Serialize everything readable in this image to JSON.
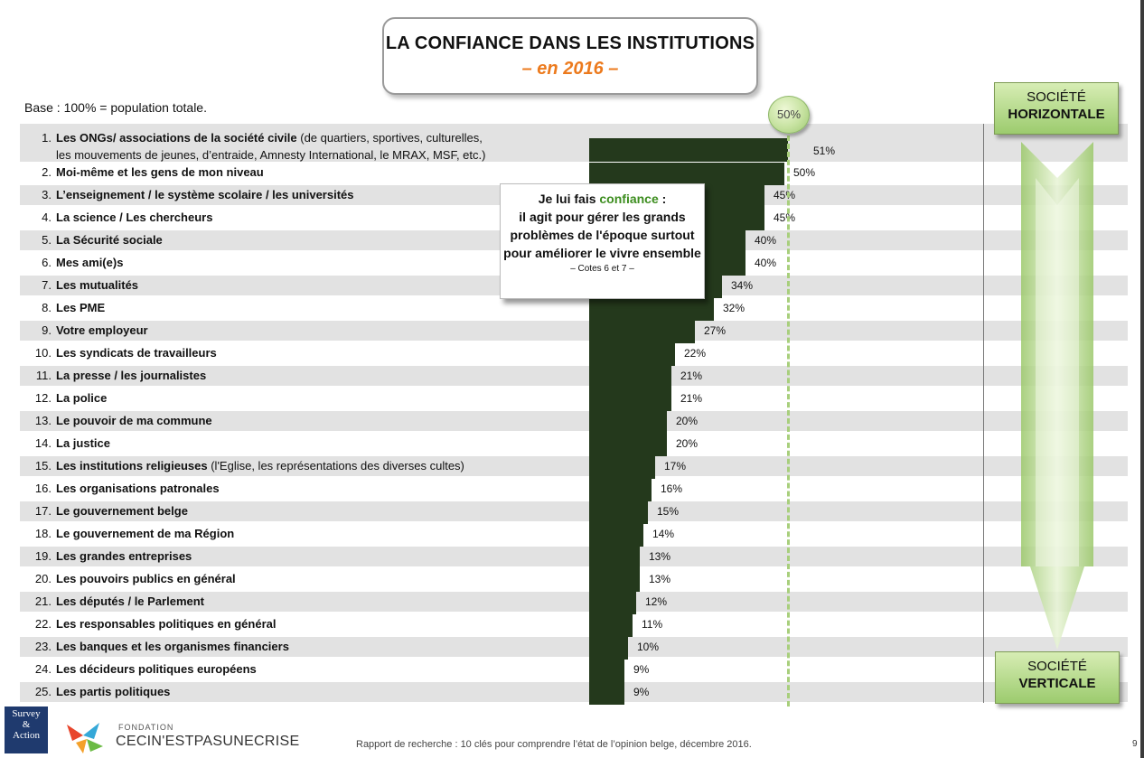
{
  "title": "LA CONFIANCE DANS LES INSTITUTIONS",
  "subtitle": "– en 2016 –",
  "base_note": "Base : 100% = population totale.",
  "reference_badge": "50%",
  "callout": {
    "line1_prefix": "Je lui fais ",
    "line1_highlight": "confiance",
    "line1_suffix": " :",
    "body": "il agit pour gérer les grands problèmes de l'époque surtout pour améliorer le vivre ensemble",
    "note": "– Cotes 6 et 7 –"
  },
  "society_top": {
    "line1": "SOCIÉTÉ",
    "line2": "HORIZONTALE"
  },
  "society_bottom": {
    "line1": "SOCIÉTÉ",
    "line2": "VERTICALE"
  },
  "logo_left": {
    "line1": "Survey",
    "line2": "&",
    "line3": "Action"
  },
  "logo_fondation": {
    "small": "FONDATION",
    "big": "CECIN'ESTPASUNECRISE"
  },
  "footer": "Rapport de recherche : 10 clés pour comprendre l’état de l’opinion belge, décembre 2016.",
  "page_number": "9",
  "colors": {
    "bar": "#24391c",
    "accent_orange": "#ec7a1d",
    "accent_green": "#3c8d1e",
    "row_shade": "#e2e2e2"
  },
  "chart_data": {
    "type": "bar",
    "orientation": "horizontal",
    "reference_line": 50,
    "categories": [
      {
        "num": "1.",
        "label": "Les ONGs/ associations de la société civile",
        "detail": " (de quartiers, sportives, culturelles,",
        "detail2": "les mouvements de jeunes, d’entraide, Amnesty International, le MRAX, MSF, etc.)"
      },
      {
        "num": "2.",
        "label": "Moi-même et les gens de mon niveau"
      },
      {
        "num": "3.",
        "label": "L’enseignement / le système scolaire / les universités"
      },
      {
        "num": "4.",
        "label": "La science / Les chercheurs"
      },
      {
        "num": "5.",
        "label": "La Sécurité sociale"
      },
      {
        "num": "6.",
        "label": "Mes ami(e)s"
      },
      {
        "num": "7.",
        "label": "Les mutualités"
      },
      {
        "num": "8.",
        "label": "Les PME"
      },
      {
        "num": "9.",
        "label": "Votre employeur"
      },
      {
        "num": "10.",
        "label": "Les syndicats de travailleurs"
      },
      {
        "num": "11.",
        "label": "La presse / les journalistes"
      },
      {
        "num": "12.",
        "label": "La police"
      },
      {
        "num": "13.",
        "label": "Le pouvoir de ma commune"
      },
      {
        "num": "14.",
        "label": "La justice"
      },
      {
        "num": "15.",
        "label": "Les institutions religieuses",
        "detail": " (l'Eglise, les représentations des diverses cultes)"
      },
      {
        "num": "16.",
        "label": "Les organisations patronales"
      },
      {
        "num": "17.",
        "label": "Le gouvernement belge"
      },
      {
        "num": "18.",
        "label": "Le gouvernement de ma Région"
      },
      {
        "num": "19.",
        "label": "Les grandes entreprises"
      },
      {
        "num": "20.",
        "label": "Les pouvoirs publics en général"
      },
      {
        "num": "21.",
        "label": "Les députés / le Parlement"
      },
      {
        "num": "22.",
        "label": "Les responsables politiques en général"
      },
      {
        "num": "23.",
        "label": "Les banques et les organismes financiers"
      },
      {
        "num": "24.",
        "label": "Les décideurs politiques européens"
      },
      {
        "num": "25.",
        "label": "Les partis politiques"
      }
    ],
    "values": [
      51,
      50,
      45,
      45,
      40,
      40,
      34,
      32,
      27,
      22,
      21,
      21,
      20,
      20,
      17,
      16,
      15,
      14,
      13,
      13,
      12,
      11,
      10,
      9,
      9
    ],
    "value_labels": [
      "51%",
      "50%",
      "45%",
      "45%",
      "40%",
      "40%",
      "34%",
      "32%",
      "27%",
      "22%",
      "21%",
      "21%",
      "20%",
      "20%",
      "17%",
      "16%",
      "15%",
      "14%",
      "13%",
      "13%",
      "12%",
      "11%",
      "10%",
      "9%",
      "9%"
    ]
  }
}
